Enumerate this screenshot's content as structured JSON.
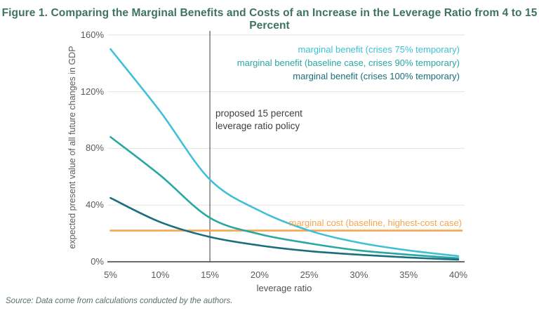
{
  "figure": {
    "title": "Figure 1. Comparing the Marginal Benefits and Costs of an Increase in the Leverage Ratio from 4 to 15 Percent",
    "source": "Source: Data come from calculations conducted by the authors.",
    "title_color": "#3D7265"
  },
  "chart_data": {
    "type": "line",
    "title": "Comparing the Marginal Benefits and Costs of an Increase in the Leverage Ratio from 4 to 15 Percent",
    "xlabel": "leverage ratio",
    "ylabel": "expected present value of all future changes in GDP",
    "xlim": [
      5,
      40
    ],
    "ylim": [
      0,
      160
    ],
    "grid": true,
    "legend_position": "top-right",
    "x_ticks": [
      "5%",
      "10%",
      "15%",
      "20%",
      "25%",
      "30%",
      "35%",
      "40%"
    ],
    "y_ticks": [
      "0%",
      "40%",
      "80%",
      "120%",
      "160%"
    ],
    "x": [
      5,
      10,
      15,
      20,
      25,
      30,
      35,
      40
    ],
    "series": [
      {
        "name": "marginal benefit (crises 75% temporary)",
        "color": "#3FC0D8",
        "values": [
          150,
          106,
          58,
          36,
          22,
          13.5,
          8,
          4
        ]
      },
      {
        "name": "marginal benefit (baseline case, crises 90% temporary)",
        "color": "#29A7A3",
        "values": [
          88,
          61,
          31,
          19.5,
          13,
          8,
          5,
          2.5
        ]
      },
      {
        "name": "marginal benefit (crises 100% temporary)",
        "color": "#1A6E7E",
        "values": [
          45,
          28,
          17.5,
          11.5,
          7.5,
          5,
          3,
          1.5
        ]
      },
      {
        "name": "marginal cost (baseline, highest-cost case)",
        "color": "#F5A54F",
        "type": "hline",
        "value": 22
      }
    ],
    "annotation": {
      "line1": "proposed 15 percent",
      "line2": "leverage ratio policy",
      "x": 15
    },
    "gridline_color": "#e3e3e3",
    "axis_line_color": "#3b3b3b",
    "reference_line_color": "#5a5a5a"
  }
}
